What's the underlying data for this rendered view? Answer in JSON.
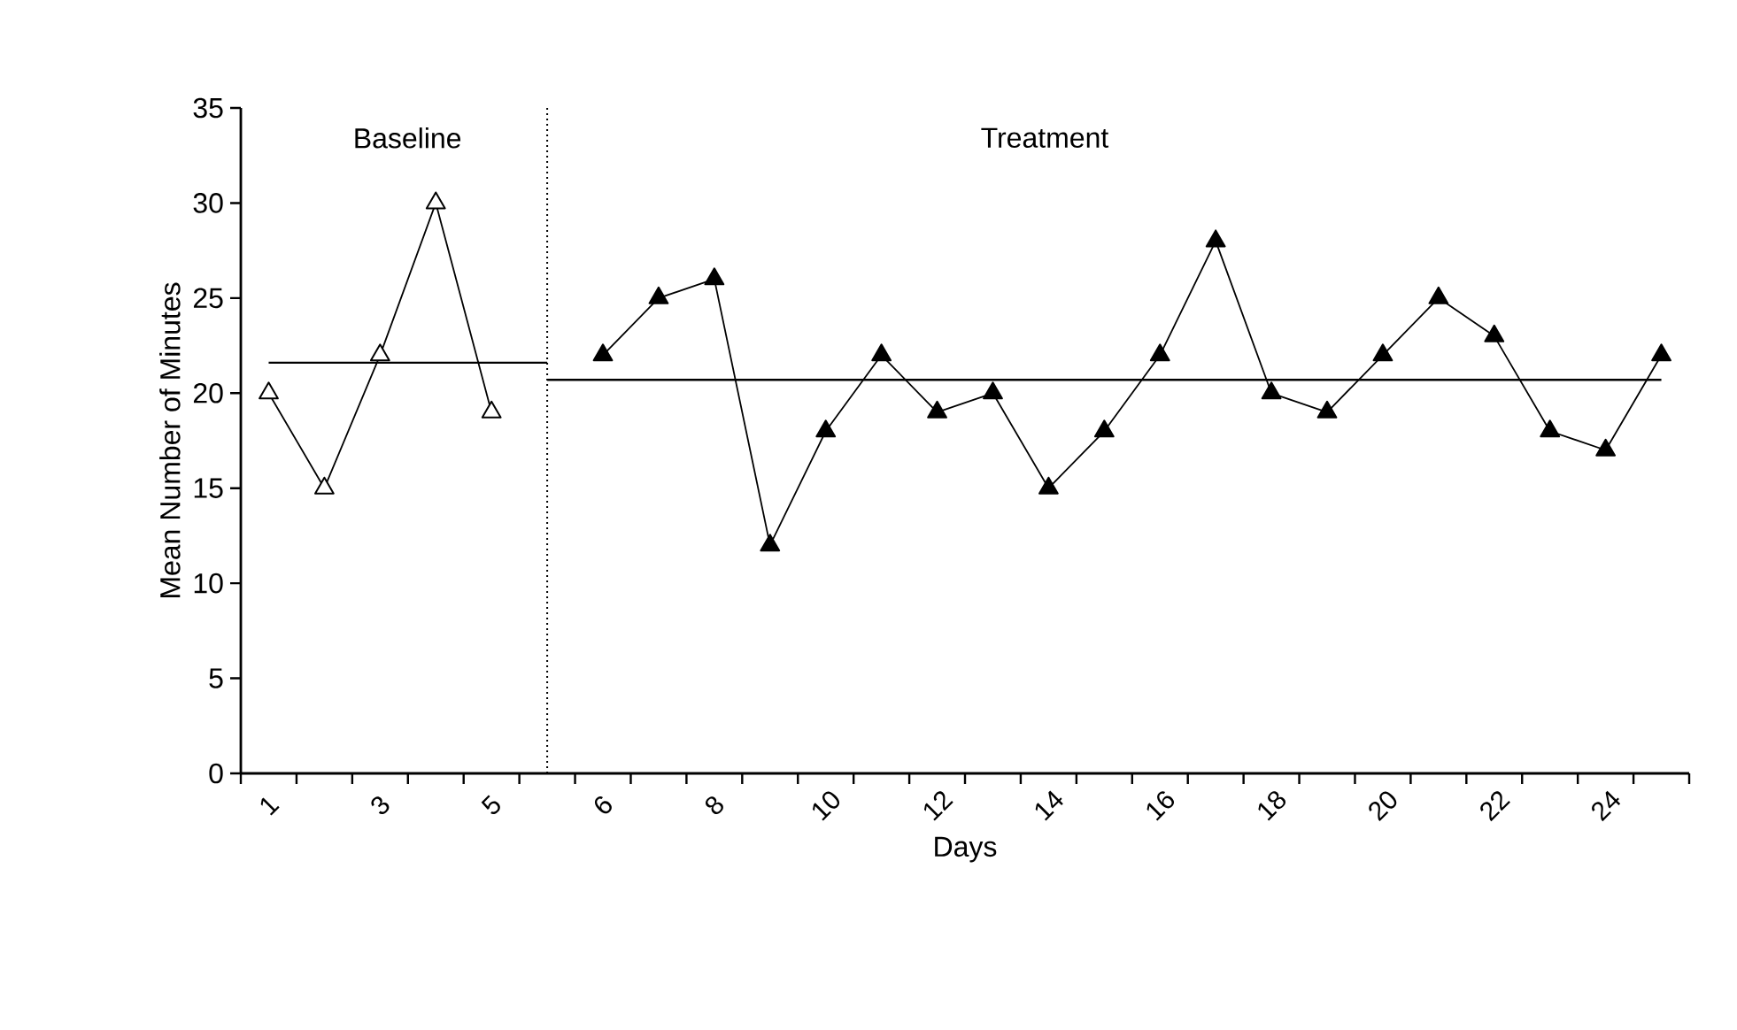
{
  "chart_data": {
    "type": "line",
    "xlabel": "Days",
    "ylabel": "Mean Number of Minutes",
    "annotations": [
      "Baseline",
      "Treatment"
    ],
    "categories": [
      "1",
      null,
      "3",
      null,
      "5",
      null,
      "6",
      null,
      "8",
      null,
      "10",
      null,
      "12",
      null,
      "14",
      null,
      "16",
      null,
      "18",
      null,
      "20",
      null,
      "22",
      null,
      "24",
      null
    ],
    "ylim": [
      0,
      35
    ],
    "yticks": [
      0,
      5,
      10,
      15,
      20,
      25,
      30,
      35
    ],
    "grid": false,
    "marker": "triangle",
    "line_style": "solid",
    "series": [
      {
        "color": "#000000",
        "values": [
          20,
          15,
          22,
          30,
          19,
          null,
          null,
          null,
          null,
          null,
          null,
          null,
          null,
          null,
          null,
          null,
          null,
          null,
          null,
          null,
          null,
          null,
          null,
          null,
          null,
          null
        ]
      },
      {
        "color": "#000000",
        "values": [
          null,
          null,
          null,
          null,
          null,
          null,
          22,
          25,
          26,
          12,
          18,
          22,
          19,
          20,
          15,
          18,
          22,
          28,
          20,
          19,
          22,
          25,
          23,
          18,
          17,
          22
        ]
      },
      {
        "type": "line",
        "color": "#000000",
        "marker": "none",
        "values": [
          21.6,
          21.6,
          21.6,
          21.6,
          21.6,
          21.6,
          null,
          null,
          null,
          null,
          null,
          null,
          null,
          null,
          null,
          null,
          null,
          null,
          null,
          null,
          null,
          null,
          null,
          null,
          null,
          null
        ]
      },
      {
        "type": "line",
        "color": "#000000",
        "marker": "none",
        "values": [
          null,
          null,
          null,
          null,
          null,
          20.7,
          20.7,
          20.7,
          20.7,
          20.7,
          20.7,
          20.7,
          20.7,
          20.7,
          20.7,
          20.7,
          20.7,
          20.7,
          20.7,
          20.7,
          20.7,
          20.7,
          20.7,
          20.7,
          20.7,
          20.7
        ]
      }
    ],
    "ref_lines": [
      {
        "axis": "x",
        "line_style": "dotted",
        "color": "#000000"
      }
    ]
  }
}
